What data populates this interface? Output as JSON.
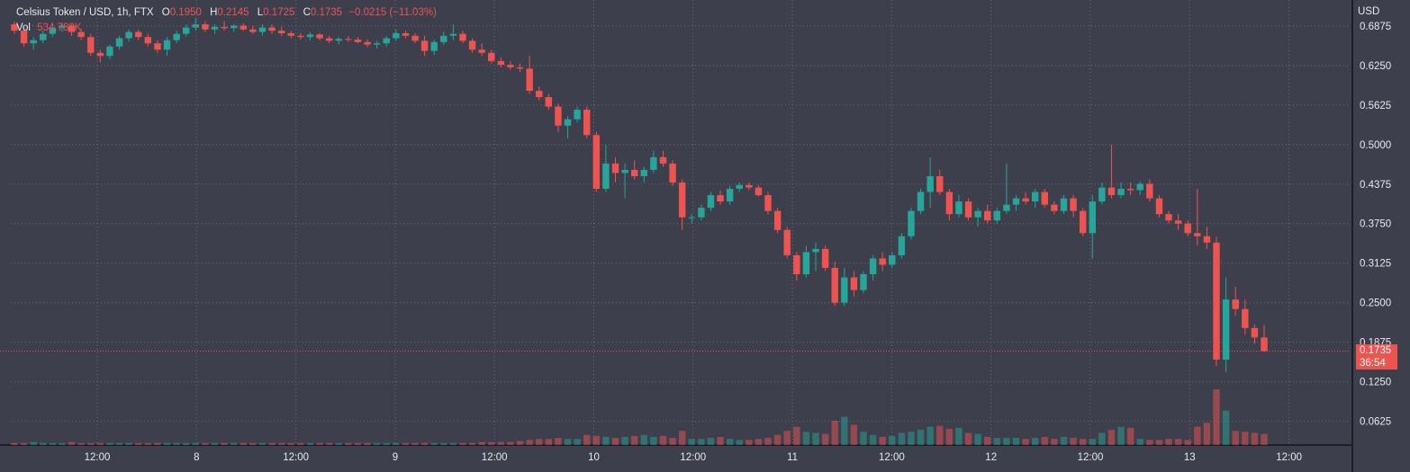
{
  "legend": {
    "title": "Celsius Token / USD, 1h, FTX",
    "open_key": "O",
    "open": "0.1950",
    "high_key": "H",
    "high": "0.2145",
    "low_key": "L",
    "low": "0.1725",
    "close_key": "C",
    "close": "0.1735",
    "change": "−0.0215 (−11.03%)",
    "vol_key": "Vol",
    "vol": "534.788K"
  },
  "price_badge": {
    "price": "0.1735",
    "countdown": "36:54"
  },
  "colors": {
    "up": "#26a69a",
    "down": "#ef5350",
    "background": "#3d3f4c",
    "grid": "#6b6d7a"
  },
  "chart_data": {
    "type": "candlestick",
    "currency_label": "USD",
    "ylim": [
      0.025,
      0.72
    ],
    "y_ticks": [
      "0.6875",
      "0.6250",
      "0.5625",
      "0.5000",
      "0.4375",
      "0.3750",
      "0.3125",
      "0.2500",
      "0.1875",
      "0.1250",
      "0.0625"
    ],
    "x_ticks": [
      "12:00",
      "8",
      "12:00",
      "9",
      "12:00",
      "10",
      "12:00",
      "11",
      "12:00",
      "12",
      "12:00",
      "13",
      "12:00"
    ],
    "last_price": 0.1735,
    "candles": [
      [
        0.69,
        0.695,
        0.675,
        0.68
      ],
      [
        0.68,
        0.685,
        0.655,
        0.66
      ],
      [
        0.66,
        0.67,
        0.65,
        0.665
      ],
      [
        0.665,
        0.68,
        0.66,
        0.675
      ],
      [
        0.675,
        0.69,
        0.67,
        0.685
      ],
      [
        0.685,
        0.692,
        0.678,
        0.688
      ],
      [
        0.688,
        0.69,
        0.672,
        0.678
      ],
      [
        0.678,
        0.683,
        0.665,
        0.67
      ],
      [
        0.67,
        0.675,
        0.64,
        0.645
      ],
      [
        0.645,
        0.65,
        0.63,
        0.64
      ],
      [
        0.64,
        0.658,
        0.635,
        0.655
      ],
      [
        0.655,
        0.672,
        0.65,
        0.668
      ],
      [
        0.668,
        0.682,
        0.663,
        0.678
      ],
      [
        0.678,
        0.682,
        0.665,
        0.67
      ],
      [
        0.67,
        0.675,
        0.655,
        0.66
      ],
      [
        0.66,
        0.665,
        0.645,
        0.65
      ],
      [
        0.65,
        0.67,
        0.64,
        0.665
      ],
      [
        0.665,
        0.68,
        0.66,
        0.675
      ],
      [
        0.675,
        0.69,
        0.67,
        0.685
      ],
      [
        0.685,
        0.7,
        0.68,
        0.69
      ],
      [
        0.69,
        0.695,
        0.678,
        0.682
      ],
      [
        0.682,
        0.69,
        0.675,
        0.686
      ],
      [
        0.686,
        0.695,
        0.68,
        0.684
      ],
      [
        0.684,
        0.69,
        0.678,
        0.688
      ],
      [
        0.688,
        0.692,
        0.68,
        0.682
      ],
      [
        0.682,
        0.688,
        0.675,
        0.678
      ],
      [
        0.678,
        0.69,
        0.672,
        0.685
      ],
      [
        0.685,
        0.69,
        0.675,
        0.68
      ],
      [
        0.68,
        0.686,
        0.672,
        0.676
      ],
      [
        0.676,
        0.68,
        0.668,
        0.672
      ],
      [
        0.672,
        0.676,
        0.666,
        0.67
      ],
      [
        0.67,
        0.678,
        0.664,
        0.674
      ],
      [
        0.674,
        0.676,
        0.665,
        0.668
      ],
      [
        0.668,
        0.672,
        0.66,
        0.664
      ],
      [
        0.664,
        0.67,
        0.658,
        0.667
      ],
      [
        0.667,
        0.672,
        0.662,
        0.666
      ],
      [
        0.666,
        0.67,
        0.66,
        0.662
      ],
      [
        0.662,
        0.666,
        0.654,
        0.658
      ],
      [
        0.658,
        0.664,
        0.652,
        0.66
      ],
      [
        0.66,
        0.672,
        0.655,
        0.668
      ],
      [
        0.668,
        0.682,
        0.664,
        0.676
      ],
      [
        0.676,
        0.68,
        0.668,
        0.672
      ],
      [
        0.672,
        0.676,
        0.66,
        0.664
      ],
      [
        0.664,
        0.672,
        0.64,
        0.648
      ],
      [
        0.648,
        0.666,
        0.642,
        0.662
      ],
      [
        0.662,
        0.678,
        0.658,
        0.672
      ],
      [
        0.672,
        0.69,
        0.665,
        0.675
      ],
      [
        0.675,
        0.68,
        0.66,
        0.664
      ],
      [
        0.664,
        0.668,
        0.645,
        0.65
      ],
      [
        0.65,
        0.66,
        0.64,
        0.645
      ],
      [
        0.645,
        0.65,
        0.628,
        0.632
      ],
      [
        0.632,
        0.638,
        0.622,
        0.626
      ],
      [
        0.626,
        0.632,
        0.618,
        0.622
      ],
      [
        0.622,
        0.628,
        0.615,
        0.62
      ],
      [
        0.62,
        0.64,
        0.58,
        0.585
      ],
      [
        0.585,
        0.592,
        0.57,
        0.575
      ],
      [
        0.575,
        0.58,
        0.555,
        0.56
      ],
      [
        0.56,
        0.565,
        0.52,
        0.53
      ],
      [
        0.53,
        0.545,
        0.51,
        0.54
      ],
      [
        0.54,
        0.56,
        0.535,
        0.555
      ],
      [
        0.555,
        0.56,
        0.51,
        0.515
      ],
      [
        0.515,
        0.52,
        0.425,
        0.43
      ],
      [
        0.43,
        0.5,
        0.425,
        0.47
      ],
      [
        0.47,
        0.48,
        0.44,
        0.455
      ],
      [
        0.455,
        0.47,
        0.415,
        0.46
      ],
      [
        0.46,
        0.475,
        0.445,
        0.45
      ],
      [
        0.45,
        0.465,
        0.44,
        0.46
      ],
      [
        0.46,
        0.49,
        0.455,
        0.48
      ],
      [
        0.48,
        0.49,
        0.465,
        0.47
      ],
      [
        0.47,
        0.475,
        0.435,
        0.44
      ],
      [
        0.44,
        0.445,
        0.365,
        0.385
      ],
      [
        0.385,
        0.39,
        0.375,
        0.385
      ],
      [
        0.385,
        0.405,
        0.38,
        0.4
      ],
      [
        0.4,
        0.425,
        0.395,
        0.42
      ],
      [
        0.42,
        0.428,
        0.405,
        0.41
      ],
      [
        0.41,
        0.435,
        0.405,
        0.43
      ],
      [
        0.43,
        0.44,
        0.425,
        0.436
      ],
      [
        0.436,
        0.44,
        0.428,
        0.432
      ],
      [
        0.432,
        0.436,
        0.418,
        0.42
      ],
      [
        0.42,
        0.425,
        0.39,
        0.395
      ],
      [
        0.395,
        0.4,
        0.36,
        0.365
      ],
      [
        0.365,
        0.37,
        0.32,
        0.325
      ],
      [
        0.325,
        0.33,
        0.285,
        0.295
      ],
      [
        0.295,
        0.34,
        0.29,
        0.33
      ],
      [
        0.33,
        0.345,
        0.3,
        0.335
      ],
      [
        0.335,
        0.34,
        0.3,
        0.305
      ],
      [
        0.305,
        0.315,
        0.245,
        0.25
      ],
      [
        0.25,
        0.305,
        0.245,
        0.29
      ],
      [
        0.29,
        0.3,
        0.26,
        0.27
      ],
      [
        0.27,
        0.3,
        0.265,
        0.295
      ],
      [
        0.295,
        0.325,
        0.285,
        0.32
      ],
      [
        0.32,
        0.33,
        0.3,
        0.31
      ],
      [
        0.31,
        0.33,
        0.305,
        0.325
      ],
      [
        0.325,
        0.36,
        0.32,
        0.355
      ],
      [
        0.355,
        0.4,
        0.35,
        0.395
      ],
      [
        0.395,
        0.43,
        0.39,
        0.425
      ],
      [
        0.425,
        0.48,
        0.4,
        0.45
      ],
      [
        0.45,
        0.46,
        0.42,
        0.425
      ],
      [
        0.425,
        0.43,
        0.38,
        0.39
      ],
      [
        0.39,
        0.42,
        0.385,
        0.41
      ],
      [
        0.41,
        0.415,
        0.38,
        0.385
      ],
      [
        0.385,
        0.4,
        0.37,
        0.395
      ],
      [
        0.395,
        0.405,
        0.375,
        0.38
      ],
      [
        0.38,
        0.4,
        0.375,
        0.395
      ],
      [
        0.395,
        0.47,
        0.39,
        0.405
      ],
      [
        0.405,
        0.42,
        0.395,
        0.415
      ],
      [
        0.415,
        0.425,
        0.405,
        0.41
      ],
      [
        0.41,
        0.43,
        0.4,
        0.425
      ],
      [
        0.425,
        0.43,
        0.4,
        0.405
      ],
      [
        0.405,
        0.41,
        0.39,
        0.395
      ],
      [
        0.395,
        0.42,
        0.39,
        0.415
      ],
      [
        0.415,
        0.42,
        0.385,
        0.395
      ],
      [
        0.395,
        0.4,
        0.355,
        0.36
      ],
      [
        0.36,
        0.42,
        0.32,
        0.41
      ],
      [
        0.41,
        0.44,
        0.405,
        0.432
      ],
      [
        0.432,
        0.5,
        0.415,
        0.42
      ],
      [
        0.42,
        0.44,
        0.415,
        0.43
      ],
      [
        0.43,
        0.44,
        0.42,
        0.428
      ],
      [
        0.428,
        0.442,
        0.42,
        0.438
      ],
      [
        0.438,
        0.445,
        0.41,
        0.415
      ],
      [
        0.415,
        0.42,
        0.385,
        0.39
      ],
      [
        0.39,
        0.395,
        0.375,
        0.38
      ],
      [
        0.38,
        0.39,
        0.365,
        0.375
      ],
      [
        0.375,
        0.38,
        0.355,
        0.36
      ],
      [
        0.36,
        0.43,
        0.34,
        0.355
      ],
      [
        0.355,
        0.37,
        0.335,
        0.345
      ],
      [
        0.345,
        0.355,
        0.15,
        0.16
      ],
      [
        0.16,
        0.29,
        0.14,
        0.255
      ],
      [
        0.255,
        0.275,
        0.23,
        0.24
      ],
      [
        0.24,
        0.255,
        0.2,
        0.21
      ],
      [
        0.21,
        0.215,
        0.185,
        0.195
      ],
      [
        0.195,
        0.2145,
        0.1725,
        0.1735
      ]
    ],
    "volume": [
      2,
      2,
      3,
      2,
      2,
      2,
      3,
      2,
      2,
      2,
      2,
      2,
      2,
      2,
      2,
      2,
      2,
      2,
      2,
      2,
      2,
      2,
      2,
      2,
      2,
      2,
      2,
      2,
      2,
      2,
      2,
      2,
      2,
      2,
      2,
      2,
      2,
      2,
      2,
      2,
      2,
      2,
      2,
      2,
      2,
      2,
      2,
      2,
      2,
      3,
      3,
      3,
      3,
      4,
      5,
      6,
      6,
      7,
      6,
      6,
      10,
      9,
      8,
      7,
      8,
      9,
      10,
      8,
      9,
      7,
      14,
      6,
      6,
      7,
      8,
      6,
      5,
      5,
      6,
      7,
      10,
      14,
      18,
      13,
      12,
      11,
      24,
      28,
      20,
      13,
      10,
      8,
      9,
      12,
      13,
      15,
      18,
      19,
      16,
      17,
      12,
      11,
      8,
      7,
      7,
      7,
      6,
      7,
      8,
      6,
      8,
      7,
      6,
      6,
      12,
      15,
      18,
      17,
      6,
      5,
      5,
      6,
      6,
      5,
      18,
      22,
      55,
      34,
      14,
      13,
      12,
      11
    ]
  }
}
